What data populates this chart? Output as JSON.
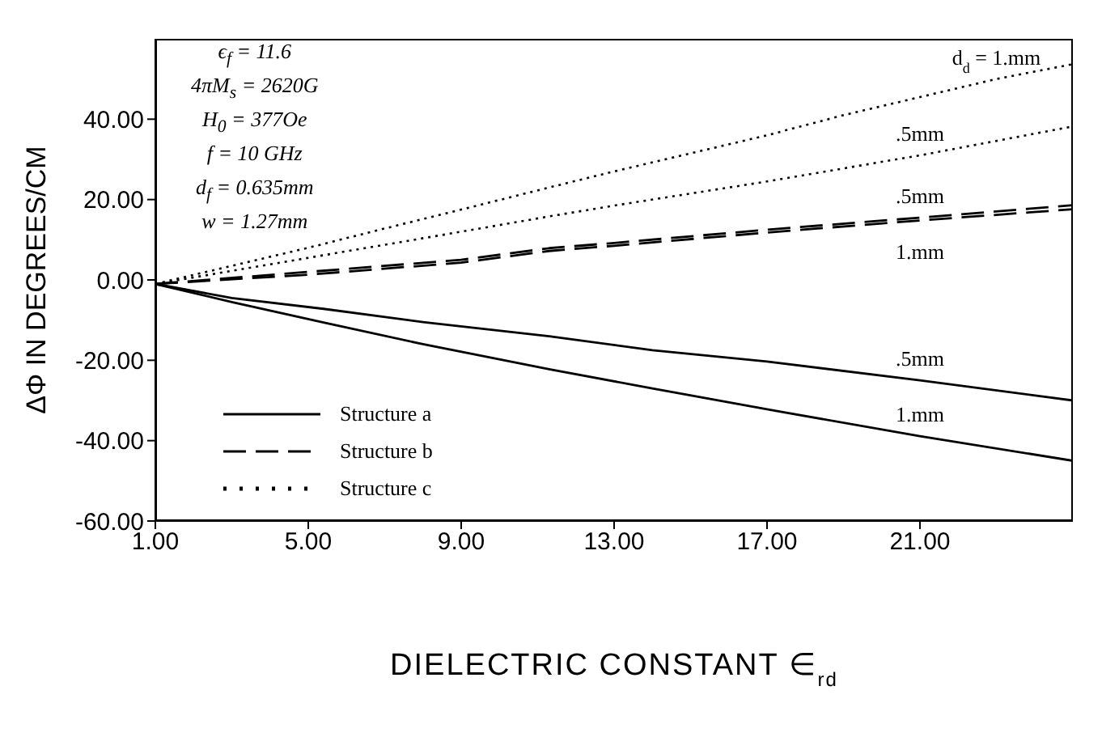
{
  "chart_data": {
    "type": "line",
    "xlabel": "DIELECTRIC CONSTANT ∈$_{rd}$",
    "ylabel": "ΔΦ IN DEGREES/CM",
    "xlim": [
      1,
      25
    ],
    "ylim": [
      -60,
      60
    ],
    "xticks": [
      {
        "value": 1,
        "label": "1.00"
      },
      {
        "value": 5,
        "label": "5.00"
      },
      {
        "value": 9,
        "label": "9.00"
      },
      {
        "value": 13,
        "label": "13.00"
      },
      {
        "value": 17,
        "label": "17.00"
      },
      {
        "value": 21,
        "label": "21.00"
      }
    ],
    "yticks": [
      {
        "value": -60,
        "label": "-60.00"
      },
      {
        "value": -40,
        "label": "-40.00"
      },
      {
        "value": -20,
        "label": "-20.00"
      },
      {
        "value": 0,
        "label": "0.00"
      },
      {
        "value": 20,
        "label": "20.00"
      },
      {
        "value": 40,
        "label": "40.00"
      }
    ],
    "grid": false,
    "legend": "bottom left",
    "marker": "none",
    "series": [
      {
        "name": "Structure a",
        "color": "#000000",
        "line_style": "solid",
        "x": [
          1,
          3,
          5.4,
          8,
          11.3,
          14,
          17,
          21,
          25
        ],
        "values": [
          -1,
          -4.5,
          -7.2,
          -10.5,
          -14,
          -17.5,
          -20.3,
          -25,
          -30
        ]
      },
      {
        "color": "#000000",
        "line_style": "solid",
        "x": [
          1,
          3,
          5.4,
          8,
          11.3,
          14,
          17,
          21,
          25
        ],
        "values": [
          -1,
          -5.5,
          -10.6,
          -16,
          -22.2,
          -27,
          -32.2,
          -38.9,
          -45
        ]
      },
      {
        "name": "Structure b",
        "color": "#000000",
        "line_style": "dashed",
        "x": [
          1,
          5,
          9,
          11.3,
          13,
          17,
          21,
          25
        ],
        "values": [
          -1,
          2,
          5,
          7.9,
          9.2,
          12.5,
          15.5,
          18.6
        ]
      },
      {
        "color": "#000000",
        "line_style": "dashed",
        "x": [
          1,
          5,
          9,
          11.3,
          13,
          17,
          21,
          25
        ],
        "values": [
          -1,
          1.3,
          4.3,
          7.2,
          8.5,
          11.8,
          14.8,
          17.6
        ]
      },
      {
        "name": "Structure c",
        "color": "#000000",
        "line_style": "dotted",
        "x": [
          1,
          3,
          5,
          7,
          9,
          11.3,
          13,
          15,
          17,
          19,
          21,
          23,
          25
        ],
        "values": [
          -1,
          3.5,
          8,
          12.8,
          17.5,
          23,
          27,
          31.5,
          36,
          41,
          45.5,
          50,
          53.7
        ]
      },
      {
        "color": "#000000",
        "line_style": "dotted",
        "x": [
          1,
          5,
          9,
          11.3,
          13,
          17,
          21,
          25
        ],
        "values": [
          -1,
          5.5,
          12,
          15.8,
          18.5,
          24.5,
          31,
          38.2
        ]
      }
    ],
    "annotations": [
      "ϵ$_{f}$ = 11.6",
      "4πM$_{s}$ = 2620G",
      "H$_{0}$ = 377Oe",
      "f = 10 GHz",
      "d$_{f}$ = 0.635mm",
      "w = 1.27mm",
      ".5mm",
      "1.mm",
      ".5mm",
      "1.mm",
      "d$_{d}$ = 1.mm",
      ".5mm"
    ]
  }
}
